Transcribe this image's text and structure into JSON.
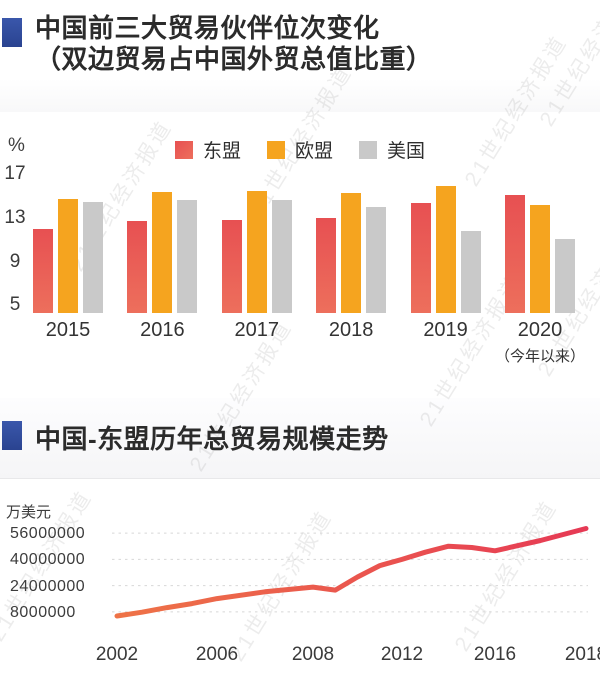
{
  "accent_blue": "#3450a3",
  "watermark": {
    "text": "21世纪经济报道"
  },
  "section1": {
    "title_line1": "中国前三大贸易伙伴位次变化",
    "title_line2": "（双边贸易占中国外贸总值比重）"
  },
  "section2": {
    "title": "中国-东盟历年总贸易规模走势"
  },
  "chart_data": [
    {
      "type": "bar",
      "title": "中国前三大贸易伙伴位次变化（双边贸易占中国外贸总值比重）",
      "ylabel": "%",
      "categories": [
        "2015",
        "2016",
        "2017",
        "2018",
        "2019",
        "2020"
      ],
      "x_note": {
        "category": "2020",
        "label": "（今年以来）"
      },
      "series": [
        {
          "name": "东盟",
          "gradient": [
            "#e75052",
            "#ed6f5c"
          ],
          "values": [
            12.0,
            12.7,
            12.8,
            13.0,
            14.4,
            15.1
          ]
        },
        {
          "name": "欧盟",
          "color": "#f5a41f",
          "values": [
            14.7,
            15.4,
            15.5,
            15.3,
            15.9,
            14.2
          ]
        },
        {
          "name": "美国",
          "color": "#c9c9c9",
          "values": [
            14.5,
            14.6,
            14.6,
            14.0,
            11.8,
            11.1
          ]
        }
      ],
      "yticks": [
        17,
        13,
        9,
        5
      ],
      "ylim": [
        4.3,
        18.3
      ],
      "grid": false,
      "legend_position": "top"
    },
    {
      "type": "line",
      "title": "中国-东盟历年总贸易规模走势",
      "ylabel": "万美元",
      "x": [
        2002,
        2003,
        2004,
        2005,
        2006,
        2007,
        2008,
        2009,
        2010,
        2011,
        2012,
        2013,
        2014,
        2015,
        2016,
        2017,
        2018
      ],
      "values": [
        5480000,
        7820000,
        10590000,
        13040000,
        16080000,
        20250000,
        23110000,
        21300000,
        29280000,
        36230000,
        40010000,
        44360000,
        48040000,
        47220000,
        45220000,
        51480000,
        58790000
      ],
      "yticks": [
        56000000,
        40000000,
        24000000,
        8000000
      ],
      "ylim": [
        0,
        64000000
      ],
      "x_tick_labels": [
        "2002",
        "2006",
        "2008",
        "2012",
        "2016",
        "2018"
      ],
      "line_gradient": [
        "#ee7347",
        "#e63a55"
      ],
      "grid": "dashed-horizontal"
    }
  ]
}
